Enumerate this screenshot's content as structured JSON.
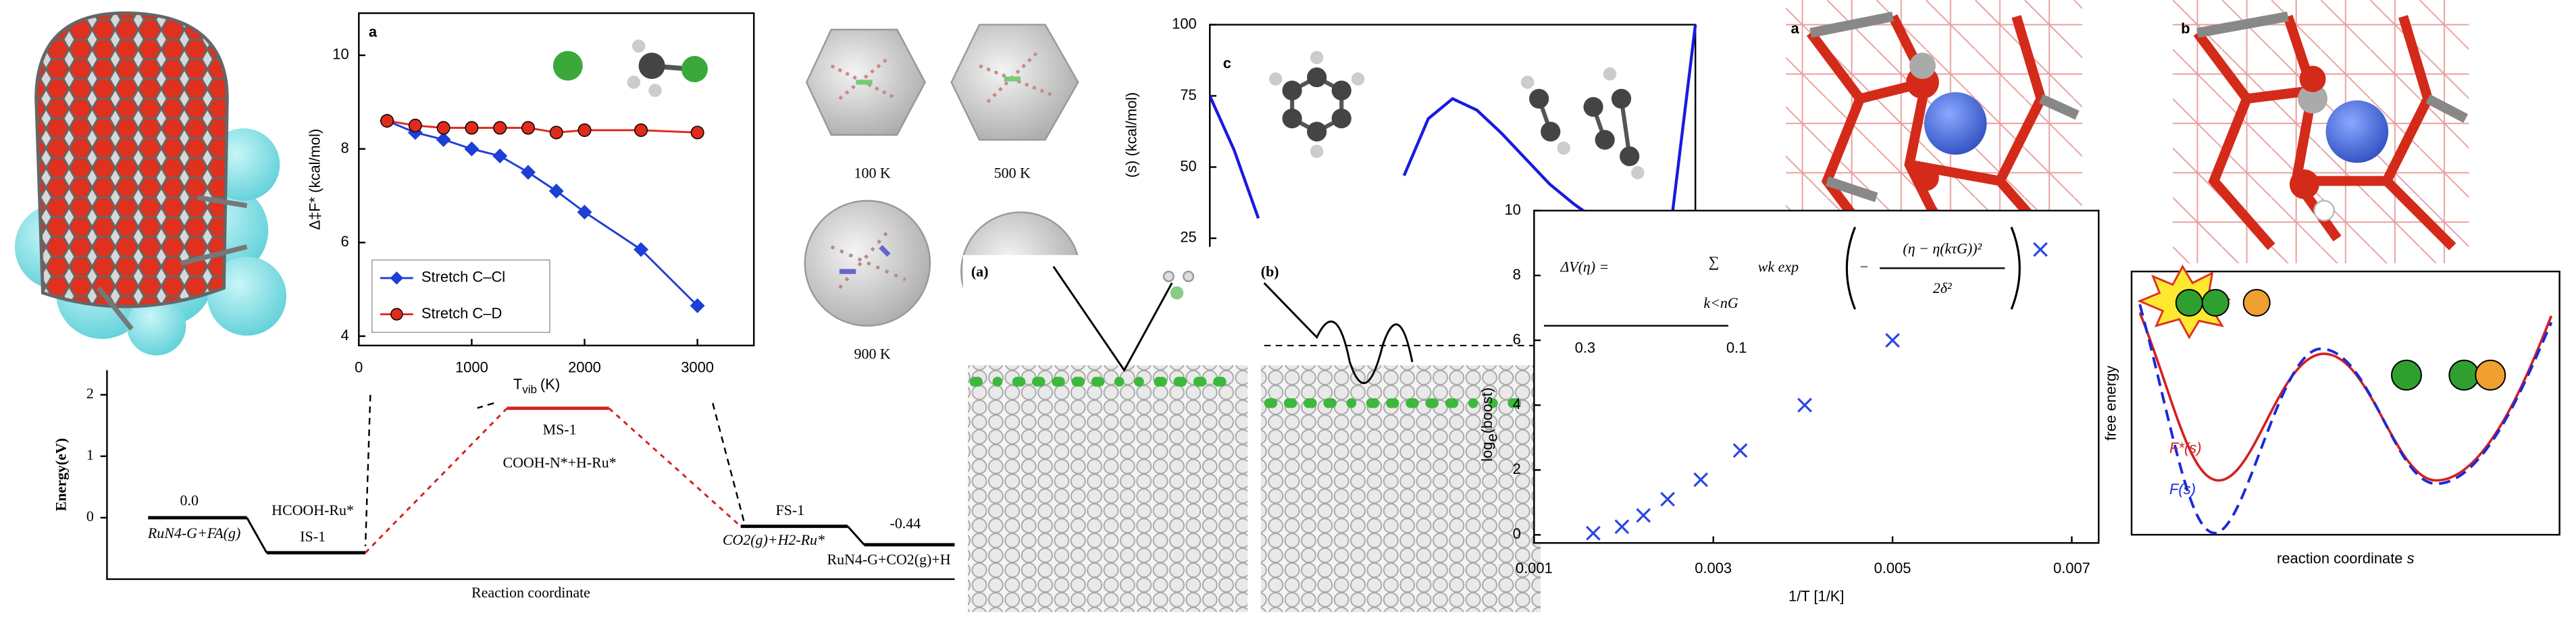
{
  "cluster_panel": {
    "labels": [
      "100 K",
      "500 K",
      "900 K"
    ]
  },
  "slab_panel": {
    "labels": [
      "(a)",
      "(b)"
    ]
  },
  "structure_panel": {
    "labels": [
      "a",
      "b"
    ]
  },
  "formula": {
    "lhs": "ΔV(η) =",
    "operator": "∑",
    "index": "k<nG",
    "term": "wk exp",
    "sign": "−",
    "numerator": "(η − η(kτG))²",
    "denominator": "2δ²"
  },
  "free_energy": {
    "y_label": "free energy",
    "x_label": "reaction coordinate",
    "x_label_symbol": "s",
    "curve_labels": [
      "F*(s)",
      "F(s)"
    ]
  },
  "chart_data": [
    {
      "type": "line",
      "label": "a",
      "y_label": "Δ‡F* (kcal/mol)",
      "x_label": "T",
      "x_label_sub": "vib",
      "x_label_unit": "(K)",
      "x": [
        250,
        500,
        750,
        1000,
        1250,
        1500,
        1750,
        2000,
        2500,
        3000
      ],
      "xlim": [
        0,
        3500
      ],
      "xticks": [
        0,
        1000,
        2000,
        3000
      ],
      "ylim": [
        3.8,
        10.9
      ],
      "yticks": [
        4,
        6,
        8,
        10
      ],
      "legend": "lower left",
      "series": [
        {
          "name": "Stretch C–Cl",
          "color": "#1c3fd6",
          "marker": "diamond",
          "values": [
            8.6,
            8.35,
            8.2,
            8.0,
            7.85,
            7.5,
            7.1,
            6.65,
            5.85,
            4.65
          ]
        },
        {
          "name": "Stretch C–D",
          "color": "#e02a1c",
          "marker": "circle",
          "values": [
            8.6,
            8.5,
            8.45,
            8.45,
            8.45,
            8.45,
            8.35,
            8.4,
            8.4,
            8.35
          ]
        }
      ]
    },
    {
      "type": "line",
      "label": "c",
      "y_label": "(s) (kcal/mol)",
      "categories": [
        null,
        null,
        null,
        null,
        null,
        null,
        null,
        null,
        null,
        null,
        null,
        null,
        null,
        null,
        null,
        null,
        null,
        null,
        null,
        null,
        null
      ],
      "ylim": [
        22,
        100
      ],
      "yticks": [
        25,
        50,
        75,
        100
      ],
      "series": [
        {
          "color": "#1a1adf",
          "marker": "none",
          "values": [
            75,
            56,
            32,
            null,
            null,
            null,
            null,
            null,
            47,
            67,
            74,
            70,
            62,
            53,
            44,
            37,
            31,
            28,
            27,
            30,
            100
          ]
        }
      ]
    },
    {
      "type": "scatter",
      "x_label": "1/T [1/K]",
      "y_label": "log",
      "y_label_sub": "e",
      "y_label_rest": "(boost)",
      "xlim": [
        0.001,
        0.0073
      ],
      "xticks": [
        0.001,
        0.003,
        0.005,
        0.007
      ],
      "ylim": [
        -0.25,
        10
      ],
      "yticks": [
        0,
        2,
        4,
        6,
        8,
        10
      ],
      "annotations": [
        "0.3",
        "0.1"
      ],
      "series": [
        {
          "color": "#2b46e0",
          "marker": "x",
          "x": [
            0.00166,
            0.00198,
            0.00222,
            0.00249,
            0.00286,
            0.0033,
            0.00402,
            0.005,
            0.00665
          ],
          "values": [
            0.05,
            0.25,
            0.6,
            1.1,
            1.7,
            2.6,
            4.0,
            6.0,
            8.8
          ]
        }
      ]
    },
    {
      "type": "energy",
      "y_label": "Energy(eV)",
      "x_label": "Reaction coordinate",
      "ylim": [
        -1.0,
        2.4
      ],
      "yticks": [
        0,
        1,
        2
      ],
      "values": [
        0,
        -0.57,
        1.78,
        -0.14,
        -0.44
      ],
      "value_labels": [
        "0.0",
        null,
        null,
        null,
        "-0.44"
      ],
      "primary_labels": [
        null,
        "HCOOH-Ru*",
        "MS-1",
        "FS-1",
        null
      ],
      "secondary_labels": [
        "RuN4-G+FA(g)",
        "IS-1",
        "COOH-N*+H-Ru*",
        "CO2(g)+H2-Ru*",
        "RuN4-G+CO2(g)+H"
      ],
      "colors": [
        "#000000",
        "#000000",
        "#d42020",
        "#000000",
        "#000000"
      ]
    }
  ]
}
